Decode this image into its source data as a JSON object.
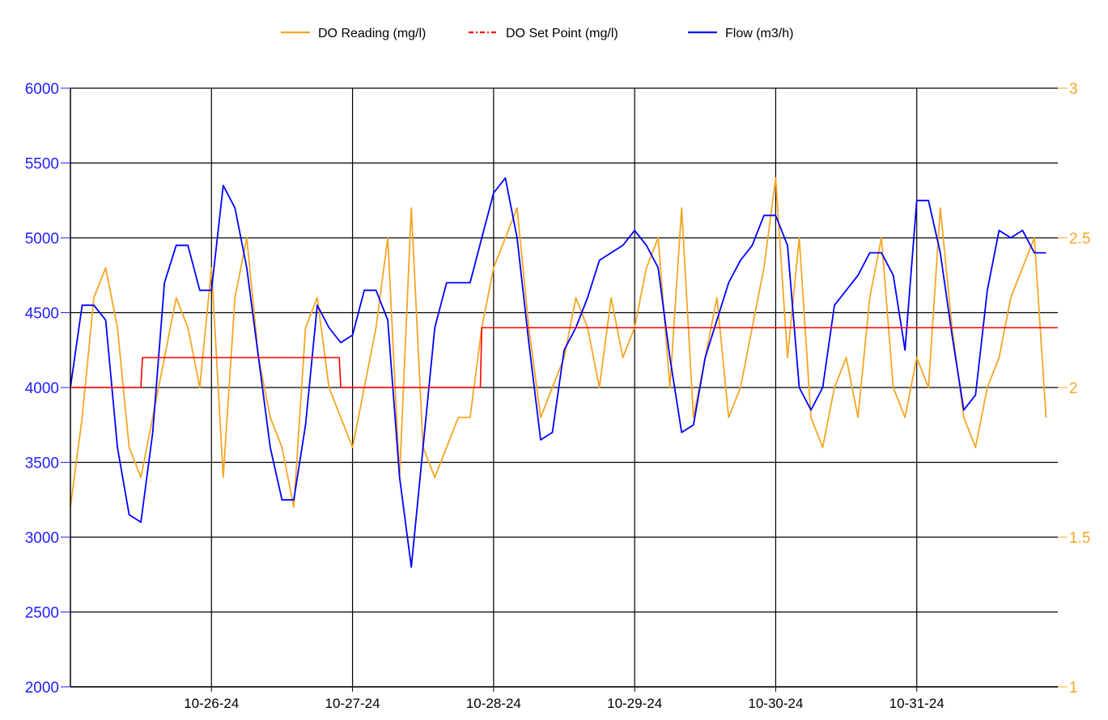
{
  "chart_data": {
    "type": "line",
    "legend": {
      "placement": "top-center",
      "entries": [
        "DO Reading (mg/l)",
        "DO Set Point (mg/l)",
        "Flow (m3/h)"
      ]
    },
    "x_axis": {
      "type": "datetime",
      "range": [
        "2024-10-25",
        "2024-11-01"
      ],
      "tick_labels": [
        "10-26-24",
        "10-27-24",
        "10-28-24",
        "10-29-24",
        "10-30-24",
        "10-31-24"
      ],
      "tick_values": [
        "2024-10-26",
        "2024-10-27",
        "2024-10-28",
        "2024-10-29",
        "2024-10-30",
        "2024-10-31"
      ]
    },
    "y_left": {
      "range": [
        2000,
        6000
      ],
      "tick_labels": [
        "2000",
        "2500",
        "3000",
        "3500",
        "4000",
        "4500",
        "5000",
        "5500",
        "6000"
      ],
      "color": "#1f1fff"
    },
    "y_right": {
      "range": [
        1,
        3
      ],
      "tick_labels": [
        "1",
        "1.5",
        "2",
        "2.5",
        "3"
      ],
      "color": "#f5a623"
    },
    "grid": true,
    "series": [
      {
        "name": "Flow (m3/h)",
        "axis": "left",
        "color": "#0000ff",
        "style": "solid",
        "x": [
          "2024-10-25 00:00",
          "2024-10-25 02:00",
          "2024-10-25 04:00",
          "2024-10-25 06:00",
          "2024-10-25 08:00",
          "2024-10-25 10:00",
          "2024-10-25 12:00",
          "2024-10-25 14:00",
          "2024-10-25 16:00",
          "2024-10-25 18:00",
          "2024-10-25 20:00",
          "2024-10-25 22:00",
          "2024-10-26 00:00",
          "2024-10-26 02:00",
          "2024-10-26 04:00",
          "2024-10-26 06:00",
          "2024-10-26 08:00",
          "2024-10-26 10:00",
          "2024-10-26 12:00",
          "2024-10-26 14:00",
          "2024-10-26 16:00",
          "2024-10-26 18:00",
          "2024-10-26 20:00",
          "2024-10-26 22:00",
          "2024-10-27 00:00",
          "2024-10-27 02:00",
          "2024-10-27 04:00",
          "2024-10-27 06:00",
          "2024-10-27 08:00",
          "2024-10-27 10:00",
          "2024-10-27 12:00",
          "2024-10-27 14:00",
          "2024-10-27 16:00",
          "2024-10-27 18:00",
          "2024-10-27 20:00",
          "2024-10-27 22:00",
          "2024-10-28 00:00",
          "2024-10-28 02:00",
          "2024-10-28 04:00",
          "2024-10-28 06:00",
          "2024-10-28 08:00",
          "2024-10-28 10:00",
          "2024-10-28 12:00",
          "2024-10-28 14:00",
          "2024-10-28 16:00",
          "2024-10-28 18:00",
          "2024-10-28 20:00",
          "2024-10-28 22:00",
          "2024-10-29 00:00",
          "2024-10-29 02:00",
          "2024-10-29 04:00",
          "2024-10-29 06:00",
          "2024-10-29 08:00",
          "2024-10-29 10:00",
          "2024-10-29 12:00",
          "2024-10-29 14:00",
          "2024-10-29 16:00",
          "2024-10-29 18:00",
          "2024-10-29 20:00",
          "2024-10-29 22:00",
          "2024-10-30 00:00",
          "2024-10-30 02:00",
          "2024-10-30 04:00",
          "2024-10-30 06:00",
          "2024-10-30 08:00",
          "2024-10-30 10:00",
          "2024-10-30 12:00",
          "2024-10-30 14:00",
          "2024-10-30 16:00",
          "2024-10-30 18:00",
          "2024-10-30 20:00",
          "2024-10-30 22:00",
          "2024-10-31 00:00",
          "2024-10-31 02:00",
          "2024-10-31 04:00",
          "2024-10-31 06:00",
          "2024-10-31 08:00",
          "2024-10-31 10:00",
          "2024-10-31 12:00",
          "2024-10-31 14:00",
          "2024-10-31 16:00",
          "2024-10-31 18:00",
          "2024-10-31 20:00",
          "2024-10-31 22:00"
        ],
        "values": [
          4000,
          4550,
          4550,
          4450,
          3600,
          3150,
          3100,
          3700,
          4700,
          4950,
          4950,
          4650,
          4650,
          5350,
          5200,
          4800,
          4200,
          3600,
          3250,
          3250,
          3750,
          4550,
          4400,
          4300,
          4350,
          4650,
          4650,
          4450,
          3400,
          2800,
          3600,
          4400,
          4700,
          4700,
          4700,
          5000,
          5300,
          5400,
          5000,
          4300,
          3650,
          3700,
          4250,
          4400,
          4600,
          4850,
          4900,
          4950,
          5050,
          4950,
          4800,
          4200,
          3700,
          3750,
          4200,
          4450,
          4700,
          4850,
          4950,
          5150,
          5150,
          4950,
          4000,
          3850,
          4000,
          4550,
          4650,
          4750,
          4900,
          4900,
          4750,
          4250,
          5250,
          5250,
          4900,
          4350,
          3850,
          3950,
          4650,
          5050,
          5000,
          5050,
          4900,
          4900
        ]
      },
      {
        "name": "DO Reading (mg/l)",
        "axis": "right",
        "color": "#f5a623",
        "style": "solid",
        "x": [
          "2024-10-25 00:00",
          "2024-10-25 02:00",
          "2024-10-25 04:00",
          "2024-10-25 06:00",
          "2024-10-25 08:00",
          "2024-10-25 10:00",
          "2024-10-25 12:00",
          "2024-10-25 14:00",
          "2024-10-25 16:00",
          "2024-10-25 18:00",
          "2024-10-25 20:00",
          "2024-10-25 22:00",
          "2024-10-26 00:00",
          "2024-10-26 02:00",
          "2024-10-26 04:00",
          "2024-10-26 06:00",
          "2024-10-26 08:00",
          "2024-10-26 10:00",
          "2024-10-26 12:00",
          "2024-10-26 14:00",
          "2024-10-26 16:00",
          "2024-10-26 18:00",
          "2024-10-26 20:00",
          "2024-10-26 22:00",
          "2024-10-27 00:00",
          "2024-10-27 02:00",
          "2024-10-27 04:00",
          "2024-10-27 06:00",
          "2024-10-27 08:00",
          "2024-10-27 10:00",
          "2024-10-27 12:00",
          "2024-10-27 14:00",
          "2024-10-27 16:00",
          "2024-10-27 18:00",
          "2024-10-27 20:00",
          "2024-10-27 22:00",
          "2024-10-28 00:00",
          "2024-10-28 02:00",
          "2024-10-28 04:00",
          "2024-10-28 06:00",
          "2024-10-28 08:00",
          "2024-10-28 10:00",
          "2024-10-28 12:00",
          "2024-10-28 14:00",
          "2024-10-28 16:00",
          "2024-10-28 18:00",
          "2024-10-28 20:00",
          "2024-10-28 22:00",
          "2024-10-29 00:00",
          "2024-10-29 02:00",
          "2024-10-29 04:00",
          "2024-10-29 06:00",
          "2024-10-29 08:00",
          "2024-10-29 10:00",
          "2024-10-29 12:00",
          "2024-10-29 14:00",
          "2024-10-29 16:00",
          "2024-10-29 18:00",
          "2024-10-29 20:00",
          "2024-10-29 22:00",
          "2024-10-30 00:00",
          "2024-10-30 02:00",
          "2024-10-30 04:00",
          "2024-10-30 06:00",
          "2024-10-30 08:00",
          "2024-10-30 10:00",
          "2024-10-30 12:00",
          "2024-10-30 14:00",
          "2024-10-30 16:00",
          "2024-10-30 18:00",
          "2024-10-30 20:00",
          "2024-10-30 22:00",
          "2024-10-31 00:00",
          "2024-10-31 02:00",
          "2024-10-31 04:00",
          "2024-10-31 06:00",
          "2024-10-31 08:00",
          "2024-10-31 10:00",
          "2024-10-31 12:00",
          "2024-10-31 14:00",
          "2024-10-31 16:00",
          "2024-10-31 18:00",
          "2024-10-31 20:00",
          "2024-10-31 22:00"
        ],
        "values": [
          1.6,
          1.9,
          2.3,
          2.4,
          2.2,
          1.8,
          1.7,
          1.9,
          2.1,
          2.3,
          2.2,
          2.0,
          2.4,
          1.7,
          2.3,
          2.5,
          2.1,
          1.9,
          1.8,
          1.6,
          2.2,
          2.3,
          2.0,
          1.9,
          1.8,
          2.0,
          2.2,
          2.5,
          1.7,
          2.6,
          1.8,
          1.7,
          1.8,
          1.9,
          1.9,
          2.2,
          2.4,
          2.5,
          2.6,
          2.2,
          1.9,
          2.0,
          2.1,
          2.3,
          2.2,
          2.0,
          2.3,
          2.1,
          2.2,
          2.4,
          2.5,
          2.0,
          2.6,
          1.9,
          2.1,
          2.3,
          1.9,
          2.0,
          2.2,
          2.4,
          2.7,
          2.1,
          2.5,
          1.9,
          1.8,
          2.0,
          2.1,
          1.9,
          2.3,
          2.5,
          2.0,
          1.9,
          2.1,
          2.0,
          2.6,
          2.2,
          1.9,
          1.8,
          2.0,
          2.1,
          2.3,
          2.4,
          2.5,
          1.9
        ]
      },
      {
        "name": "DO Set Point (mg/l)",
        "axis": "right",
        "color": "#ff0000",
        "style": "dash-dot",
        "x": [
          "2024-10-25 00:00",
          "2024-10-25 12:00",
          "2024-10-25 12:15",
          "2024-10-26 21:45",
          "2024-10-26 22:00",
          "2024-10-27 21:45",
          "2024-10-27 22:00",
          "2024-10-31 23:59"
        ],
        "values": [
          2.0,
          2.0,
          2.1,
          2.1,
          2.0,
          2.0,
          2.2,
          2.2
        ]
      }
    ]
  }
}
